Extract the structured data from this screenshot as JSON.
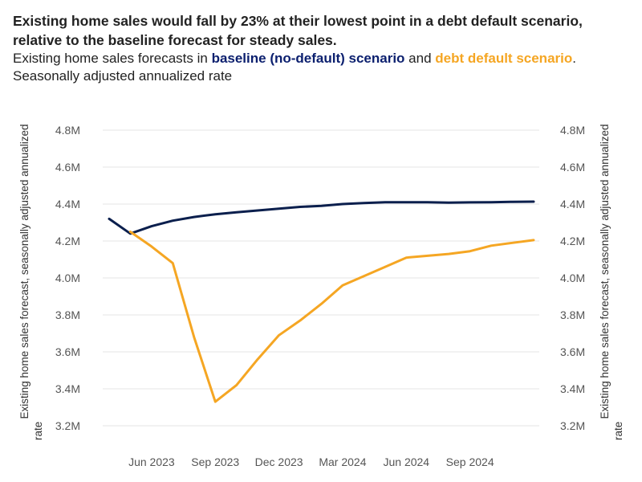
{
  "header": {
    "title": "Existing home sales would fall by 23% at their lowest point in a debt default scenario, relative to the baseline forecast for steady sales.",
    "subtitle_prefix": "Existing home sales forecasts in ",
    "subtitle_and": " and ",
    "subtitle_end": ".",
    "note": "Seasonally adjusted annualized rate"
  },
  "chart_data": {
    "type": "line",
    "ylabel_left": "Existing home sales forecast, seasonally adjusted annualized rate",
    "ylabel_right": "Existing home sales forecast, seasonally adjusted annualized rate",
    "ylim": [
      3.1,
      4.9
    ],
    "yticks": [
      "4.8M",
      "4.6M",
      "4.4M",
      "4.2M",
      "4.0M",
      "3.8M",
      "3.6M",
      "3.4M",
      "3.2M"
    ],
    "ytick_values": [
      4.8,
      4.6,
      4.4,
      4.2,
      4.0,
      3.8,
      3.6,
      3.4,
      3.2
    ],
    "x": [
      "2023-04",
      "2023-05",
      "2023-06",
      "2023-07",
      "2023-08",
      "2023-09",
      "2023-10",
      "2023-11",
      "2023-12",
      "2024-01",
      "2024-02",
      "2024-03",
      "2024-04",
      "2024-05",
      "2024-06",
      "2024-07",
      "2024-08",
      "2024-09",
      "2024-10",
      "2024-11",
      "2024-12"
    ],
    "xticks": [
      "Jun 2023",
      "Sep 2023",
      "Dec 2023",
      "Mar 2024",
      "Jun 2024",
      "Sep 2024"
    ],
    "xtick_positions": [
      2,
      5,
      8,
      11,
      14,
      17
    ],
    "series": [
      {
        "name": "baseline (no-default) scenario",
        "color": "#0b1f4d",
        "values": [
          4.32,
          4.24,
          4.28,
          4.31,
          4.33,
          4.345,
          4.355,
          4.365,
          4.375,
          4.385,
          4.39,
          4.4,
          4.405,
          4.41,
          4.41,
          4.41,
          4.408,
          4.409,
          4.41,
          4.412,
          4.413
        ]
      },
      {
        "name": "debt default scenario",
        "color": "#f5a623",
        "values": [
          null,
          4.25,
          4.17,
          4.08,
          3.68,
          3.33,
          3.42,
          3.56,
          3.69,
          3.77,
          3.86,
          3.96,
          4.01,
          4.06,
          4.11,
          4.12,
          4.13,
          4.145,
          4.175,
          4.19,
          4.205
        ]
      }
    ],
    "grid": true
  }
}
